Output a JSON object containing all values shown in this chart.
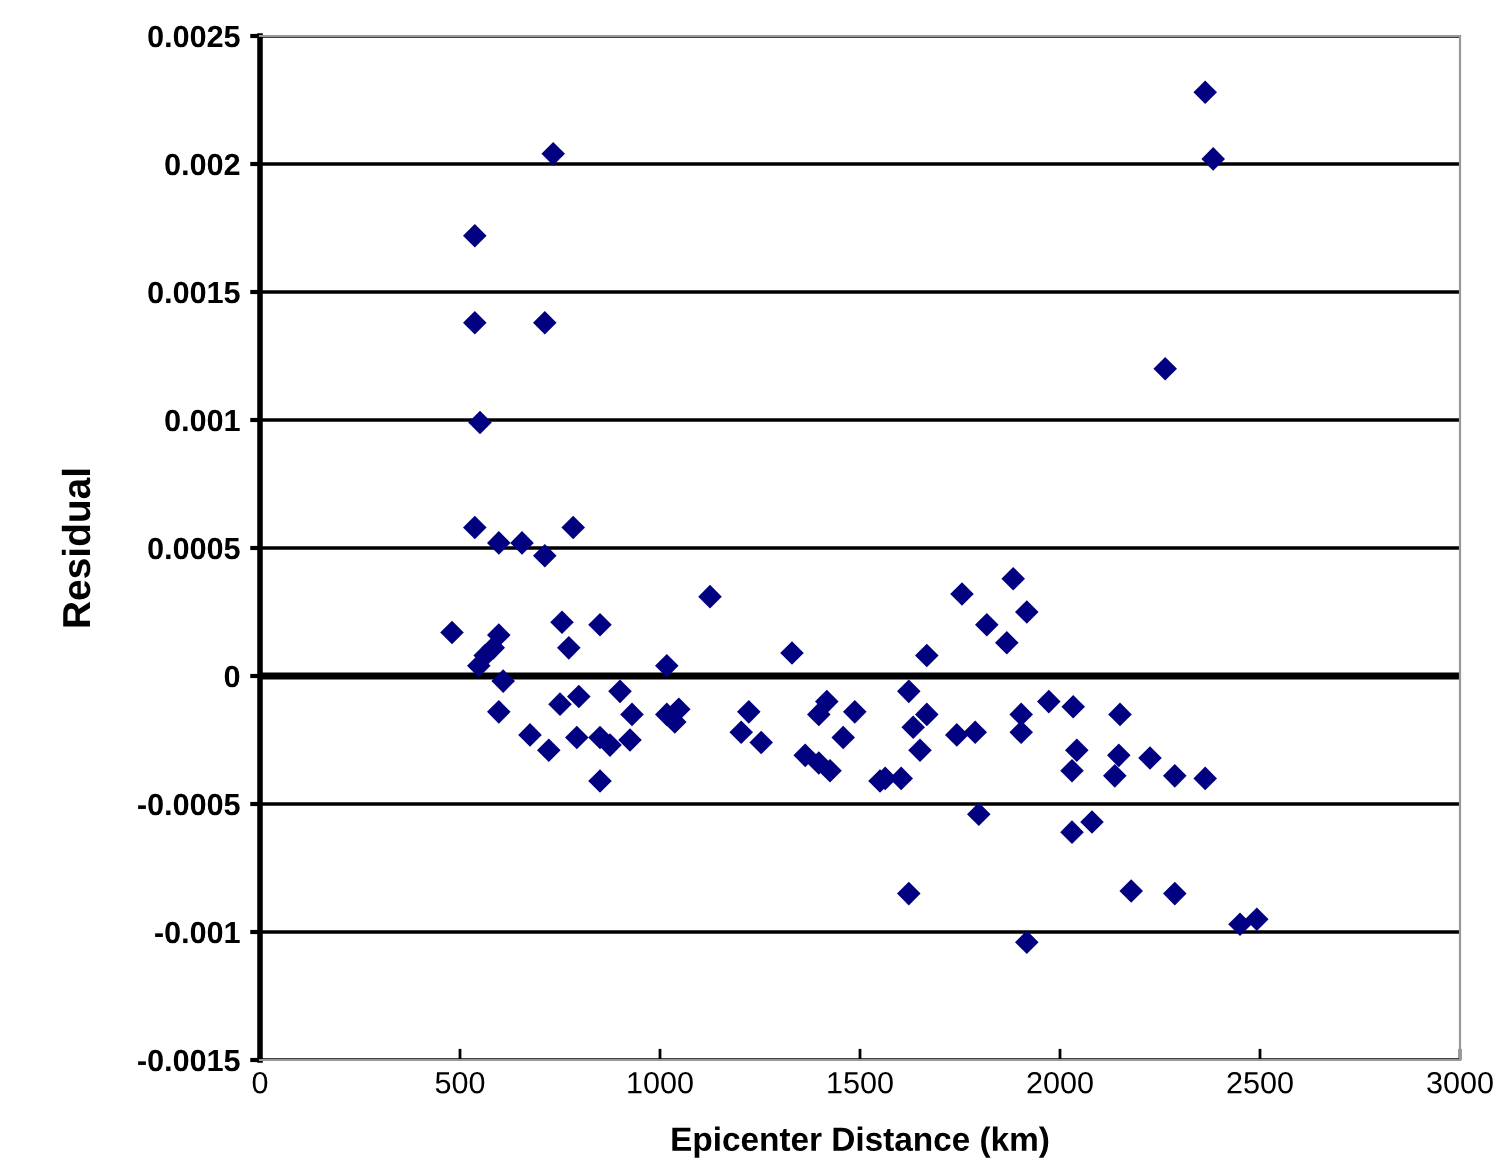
{
  "chart_data": {
    "type": "scatter",
    "xlabel": "Epicenter Distance (km)",
    "ylabel": "Residual",
    "x": [
      733,
      537,
      537,
      712,
      550,
      537,
      597,
      655,
      712,
      783,
      1125,
      2363,
      2383,
      2263,
      1883,
      1755,
      480,
      597,
      583,
      563,
      547,
      755,
      850,
      772,
      1017,
      1330,
      608,
      597,
      675,
      722,
      750,
      797,
      792,
      850,
      850,
      875,
      900,
      930,
      925,
      1017,
      1047,
      1037,
      1222,
      1203,
      1253,
      1397,
      1417,
      1363,
      1397,
      1425,
      1487,
      1458,
      1550,
      1622,
      1667,
      1667,
      1633,
      1650,
      1563,
      1603,
      1742,
      1788,
      1817,
      1867,
      1917,
      1903,
      1903,
      1972,
      2033,
      2042,
      2030,
      1797,
      2030,
      2080,
      1622,
      1917,
      2150,
      2147,
      2137,
      2225,
      2287,
      2363,
      2178,
      2287,
      2450,
      2492
    ],
    "series": [
      {
        "color": "#000080",
        "values": [
          0.00204,
          0.00172,
          0.00138,
          0.00138,
          0.00099,
          0.00058,
          0.00052,
          0.00052,
          0.00047,
          0.00058,
          0.00031,
          0.00228,
          0.00202,
          0.0012,
          0.00038,
          0.00032,
          0.00017,
          0.00016,
          0.00011,
          8e-05,
          4e-05,
          0.00021,
          0.0002,
          0.00011,
          4e-05,
          9e-05,
          -2e-05,
          -0.00014,
          -0.00023,
          -0.00029,
          -0.00011,
          -8e-05,
          -0.00024,
          -0.00041,
          -0.00024,
          -0.00027,
          -6e-05,
          -0.00015,
          -0.00025,
          -0.00015,
          -0.00013,
          -0.00018,
          -0.00014,
          -0.00022,
          -0.00026,
          -0.00015,
          -0.0001,
          -0.00031,
          -0.00034,
          -0.00037,
          -0.00014,
          -0.00024,
          -0.00041,
          -6e-05,
          8e-05,
          -0.00015,
          -0.0002,
          -0.00029,
          -0.0004,
          -0.0004,
          -0.00023,
          -0.00022,
          0.0002,
          0.00013,
          0.00025,
          -0.00015,
          -0.00022,
          -0.0001,
          -0.00012,
          -0.00029,
          -0.00037,
          -0.00054,
          -0.00061,
          -0.00057,
          -0.00085,
          -0.00104,
          -0.00015,
          -0.00031,
          -0.00039,
          -0.00032,
          -0.00039,
          -0.0004,
          -0.00084,
          -0.00085,
          -0.00097,
          -0.00095
        ]
      }
    ],
    "xlim": [
      0,
      3000
    ],
    "xticks": [
      0,
      500,
      1000,
      1500,
      2000,
      2500,
      3000
    ],
    "ylim": [
      -0.0015,
      0.0025
    ],
    "yticks": [
      {
        "value": -0.0015,
        "label": "-0.0015"
      },
      {
        "value": -0.001,
        "label": "-0.001"
      },
      {
        "value": -0.0005,
        "label": "-0.0005"
      },
      0,
      0.0005,
      0.001,
      0.0015,
      0.002,
      0.0025
    ],
    "grid": "y",
    "marker": "diamond"
  }
}
